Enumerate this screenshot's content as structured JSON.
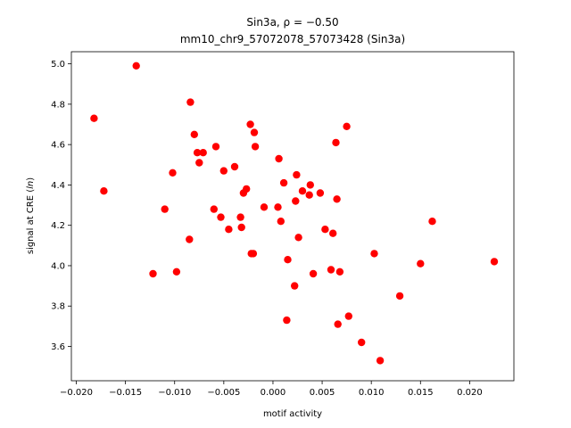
{
  "chart_data": {
    "type": "scatter",
    "title_line1": "Sin3a, ρ = −0.50",
    "title_line2": "mm10_chr9_57072078_57073428 (Sin3a)",
    "xlabel": "motif activity",
    "ylabel": "signal at CRE (ln)",
    "xlim": [
      -0.0205,
      0.0245
    ],
    "ylim": [
      3.43,
      5.06
    ],
    "x_ticks": [
      -0.02,
      -0.015,
      -0.01,
      -0.005,
      0.0,
      0.005,
      0.01,
      0.015,
      0.02
    ],
    "x_tick_labels": [
      "−0.020",
      "−0.015",
      "−0.010",
      "−0.005",
      "0.000",
      "0.005",
      "0.010",
      "0.015",
      "0.020"
    ],
    "y_ticks": [
      3.6,
      3.8,
      4.0,
      4.2,
      4.4,
      4.6,
      4.8,
      5.0
    ],
    "y_tick_labels": [
      "3.6",
      "3.8",
      "4.0",
      "4.2",
      "4.4",
      "4.6",
      "4.8",
      "5.0"
    ],
    "marker_color": "#ff0000",
    "grid": false,
    "points": [
      {
        "x": -0.0182,
        "y": 4.73
      },
      {
        "x": -0.0172,
        "y": 4.37
      },
      {
        "x": -0.0139,
        "y": 4.99
      },
      {
        "x": -0.0122,
        "y": 3.96
      },
      {
        "x": -0.011,
        "y": 4.28
      },
      {
        "x": -0.0102,
        "y": 4.46
      },
      {
        "x": -0.0098,
        "y": 3.97
      },
      {
        "x": -0.0085,
        "y": 4.13
      },
      {
        "x": -0.0084,
        "y": 4.81
      },
      {
        "x": -0.008,
        "y": 4.65
      },
      {
        "x": -0.0077,
        "y": 4.56
      },
      {
        "x": -0.0075,
        "y": 4.51
      },
      {
        "x": -0.0071,
        "y": 4.56
      },
      {
        "x": -0.006,
        "y": 4.28
      },
      {
        "x": -0.0058,
        "y": 4.59
      },
      {
        "x": -0.0053,
        "y": 4.24
      },
      {
        "x": -0.005,
        "y": 4.47
      },
      {
        "x": -0.0045,
        "y": 4.18
      },
      {
        "x": -0.0039,
        "y": 4.49
      },
      {
        "x": -0.0033,
        "y": 4.24
      },
      {
        "x": -0.0032,
        "y": 4.19
      },
      {
        "x": -0.003,
        "y": 4.36
      },
      {
        "x": -0.0027,
        "y": 4.38
      },
      {
        "x": -0.0023,
        "y": 4.7
      },
      {
        "x": -0.0022,
        "y": 4.06
      },
      {
        "x": -0.002,
        "y": 4.06
      },
      {
        "x": -0.0019,
        "y": 4.66
      },
      {
        "x": -0.0018,
        "y": 4.59
      },
      {
        "x": -0.0009,
        "y": 4.29
      },
      {
        "x": 0.0005,
        "y": 4.29
      },
      {
        "x": 0.0006,
        "y": 4.53
      },
      {
        "x": 0.0008,
        "y": 4.22
      },
      {
        "x": 0.0011,
        "y": 4.41
      },
      {
        "x": 0.0014,
        "y": 3.73
      },
      {
        "x": 0.0015,
        "y": 4.03
      },
      {
        "x": 0.0022,
        "y": 3.9
      },
      {
        "x": 0.0023,
        "y": 4.32
      },
      {
        "x": 0.0024,
        "y": 4.45
      },
      {
        "x": 0.0026,
        "y": 4.14
      },
      {
        "x": 0.003,
        "y": 4.37
      },
      {
        "x": 0.0037,
        "y": 4.35
      },
      {
        "x": 0.0038,
        "y": 4.4
      },
      {
        "x": 0.0041,
        "y": 3.96
      },
      {
        "x": 0.0048,
        "y": 4.36
      },
      {
        "x": 0.0053,
        "y": 4.18
      },
      {
        "x": 0.0059,
        "y": 3.98
      },
      {
        "x": 0.0061,
        "y": 4.16
      },
      {
        "x": 0.0064,
        "y": 4.61
      },
      {
        "x": 0.0065,
        "y": 4.33
      },
      {
        "x": 0.0066,
        "y": 3.71
      },
      {
        "x": 0.0068,
        "y": 3.97
      },
      {
        "x": 0.0075,
        "y": 4.69
      },
      {
        "x": 0.0077,
        "y": 3.75
      },
      {
        "x": 0.009,
        "y": 3.62
      },
      {
        "x": 0.0103,
        "y": 4.06
      },
      {
        "x": 0.0109,
        "y": 3.53
      },
      {
        "x": 0.0129,
        "y": 3.85
      },
      {
        "x": 0.015,
        "y": 4.01
      },
      {
        "x": 0.0162,
        "y": 4.22
      },
      {
        "x": 0.0225,
        "y": 4.02
      }
    ]
  }
}
